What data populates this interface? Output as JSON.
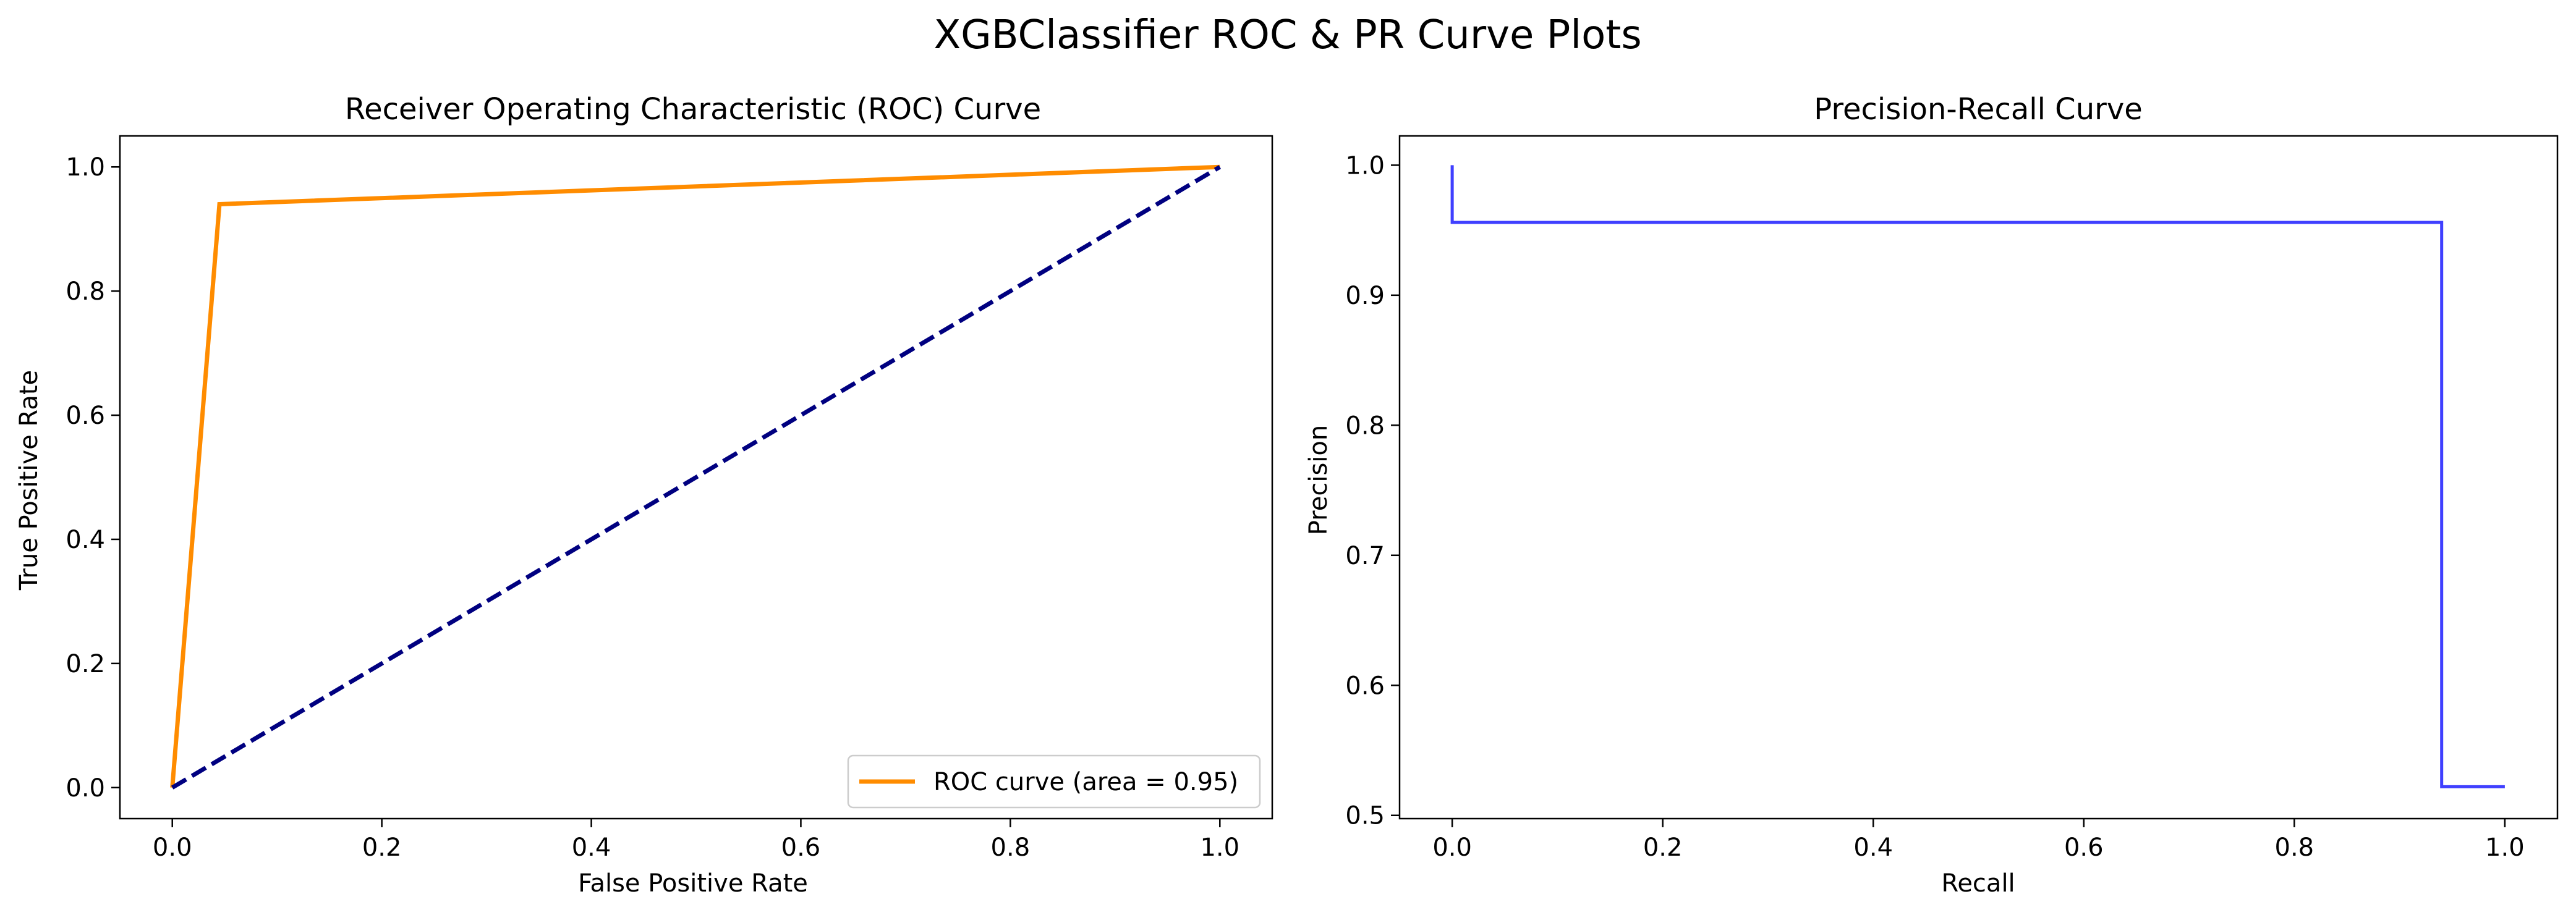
{
  "figure": {
    "title": "XGBClassifier ROC & PR Curve Plots"
  },
  "chart_data": [
    {
      "type": "line",
      "title": "Receiver Operating Characteristic (ROC) Curve",
      "xlabel": "False Positive Rate",
      "ylabel": "True Positive Rate",
      "xlim": [
        -0.05,
        1.05
      ],
      "ylim": [
        -0.05,
        1.05
      ],
      "xticks": [
        0.0,
        0.2,
        0.4,
        0.6,
        0.8,
        1.0
      ],
      "yticks": [
        0.0,
        0.2,
        0.4,
        0.6,
        0.8,
        1.0
      ],
      "tick_format": 1,
      "grid": false,
      "legend_position": "lower-right",
      "series": [
        {
          "name": "ROC curve (area = 0.95)",
          "x": [
            0.0,
            0.045,
            1.0
          ],
          "y": [
            0.0,
            0.94,
            1.0
          ],
          "color": "#ff8c00",
          "style": "solid",
          "show_in_legend": true
        },
        {
          "x": [
            0.0,
            1.0
          ],
          "y": [
            0.0,
            1.0
          ],
          "color": "#000080",
          "style": "dashed",
          "show_in_legend": false
        }
      ]
    },
    {
      "type": "line",
      "title": "Precision-Recall Curve",
      "xlabel": "Recall",
      "ylabel": "Precision",
      "xlim": [
        -0.05,
        1.05
      ],
      "ylim": [
        0.4975,
        1.0225
      ],
      "xticks": [
        0.0,
        0.2,
        0.4,
        0.6,
        0.8,
        1.0
      ],
      "yticks": [
        0.5,
        0.6,
        0.7,
        0.8,
        0.9,
        1.0
      ],
      "tick_format": 1,
      "grid": false,
      "series": [
        {
          "x": [
            0.0,
            0.0,
            0.94,
            0.94,
            1.0
          ],
          "y": [
            1.0,
            0.956,
            0.956,
            0.522,
            0.522
          ],
          "color": "#0000ff",
          "style": "step",
          "alpha": 0.75,
          "show_in_legend": false
        }
      ]
    }
  ]
}
